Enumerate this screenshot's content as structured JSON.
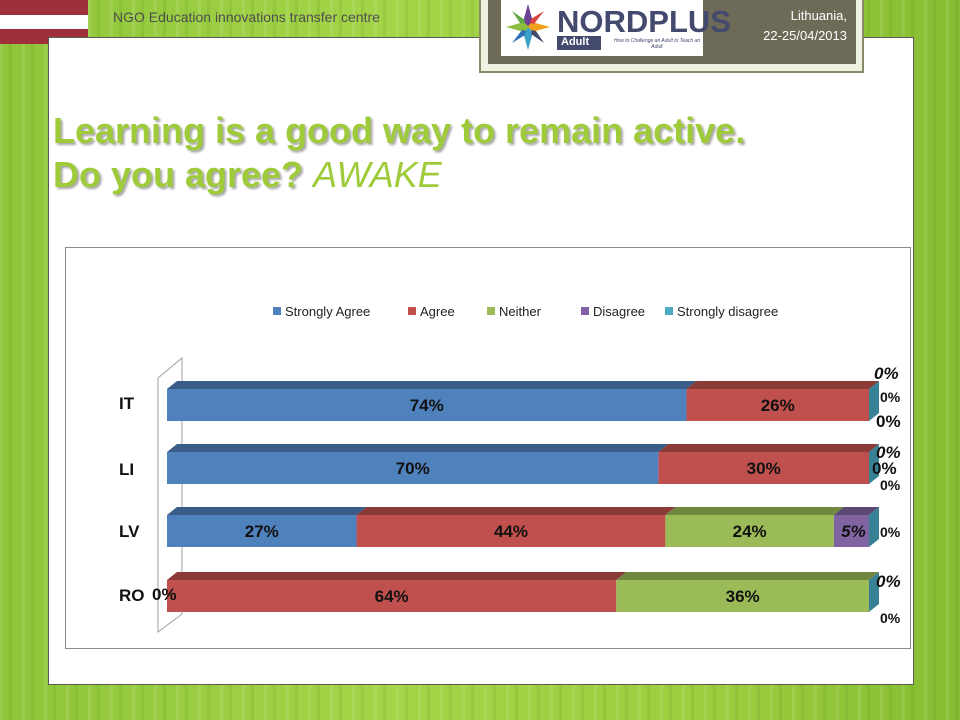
{
  "header": {
    "org": "NGO Education innovations transfer centre",
    "logo_main": "NORDPLUS",
    "logo_sub": "Adult",
    "logo_tagline": "How to Challenge an Adult to Teach an Adult",
    "location_line1": "Lithuania,",
    "location_line2": "22-25/04/2013"
  },
  "slide": {
    "title_line1": "Learning is a good way to remain active.",
    "title_line2": "Do you agree?",
    "title_suffix": "AWAKE"
  },
  "colors": {
    "title_green": "#9fcb3b",
    "flag_red": "#9e3039"
  },
  "chart_data": {
    "type": "bar",
    "orientation": "horizontal",
    "stacked": true,
    "percent": true,
    "categories": [
      "IT",
      "LI",
      "LV",
      "RO"
    ],
    "series": [
      {
        "name": "Strongly Agree",
        "color": "#4f81bd",
        "values": [
          74,
          70,
          27,
          0
        ],
        "labels": [
          "74%",
          "70%",
          "27%",
          "0%"
        ]
      },
      {
        "name": "Agree",
        "color": "#c0504d",
        "values": [
          26,
          30,
          44,
          64
        ],
        "labels": [
          "26%",
          "30%",
          "44%",
          "64%"
        ]
      },
      {
        "name": "Neither",
        "color": "#9bbb59",
        "values": [
          0,
          0,
          24,
          36
        ],
        "labels": [
          "0%",
          "0%",
          "24%",
          "36%"
        ]
      },
      {
        "name": "Disagree",
        "color": "#8064a2",
        "values": [
          0,
          0,
          5,
          0
        ],
        "labels": [
          "0%",
          "0%",
          "5%",
          "0%"
        ]
      },
      {
        "name": "Strongly disagree",
        "color": "#4bacc6",
        "values": [
          0,
          0,
          0,
          0
        ],
        "labels": [
          "0%",
          "0%",
          "0%",
          "0%"
        ]
      }
    ],
    "legend_position": "top",
    "grid": false
  }
}
